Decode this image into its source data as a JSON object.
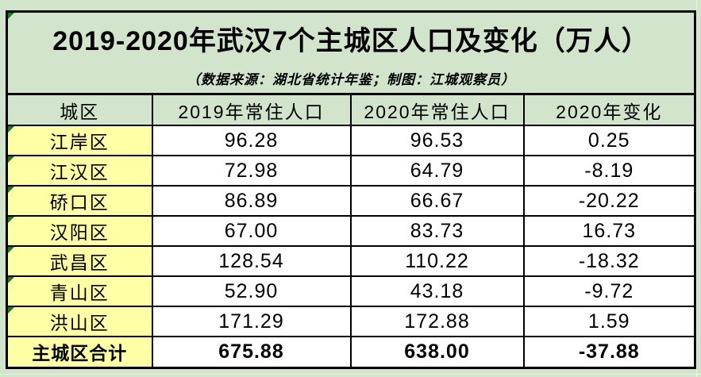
{
  "page": {
    "title": "2019-2020年武汉7个主城区人口及变化（万人）",
    "subtitle": "（数据来源：湖北省统计年鉴；制图：江城观察员）"
  },
  "colors": {
    "background_green": "#d2e5cc",
    "label_yellow": "#ffffa6",
    "data_white": "#ffffff",
    "border_black": "#000000",
    "note_triangle_green": "#1f7820"
  },
  "table": {
    "columns": [
      "城区",
      "2019年常住人口",
      "2020年常住人口",
      "2020年变化"
    ],
    "rows": [
      {
        "district": "江岸区",
        "pop2019": "96.28",
        "pop2020": "96.53",
        "change": "0.25"
      },
      {
        "district": "江汉区",
        "pop2019": "72.98",
        "pop2020": "64.79",
        "change": "-8.19"
      },
      {
        "district": "硚口区",
        "pop2019": "86.89",
        "pop2020": "66.67",
        "change": "-20.22"
      },
      {
        "district": "汉阳区",
        "pop2019": "67.00",
        "pop2020": "83.73",
        "change": "16.73"
      },
      {
        "district": "武昌区",
        "pop2019": "128.54",
        "pop2020": "110.22",
        "change": "-18.32"
      },
      {
        "district": "青山区",
        "pop2019": "52.90",
        "pop2020": "43.18",
        "change": "-9.72"
      },
      {
        "district": "洪山区",
        "pop2019": "171.29",
        "pop2020": "172.88",
        "change": "1.59"
      }
    ],
    "total_row": {
      "district": "主城区合计",
      "pop2019": "675.88",
      "pop2020": "638.00",
      "change": "-37.88"
    }
  },
  "chart_data": {
    "type": "table",
    "title": "2019-2020年武汉7个主城区人口及变化（万人）",
    "subtitle": "（数据来源：湖北省统计年鉴；制图：江城观察员）",
    "unit": "万人",
    "columns": [
      "城区",
      "2019年常住人口",
      "2020年常住人口",
      "2020年变化"
    ],
    "categories": [
      "江岸区",
      "江汉区",
      "硚口区",
      "汉阳区",
      "武昌区",
      "青山区",
      "洪山区"
    ],
    "series": [
      {
        "name": "2019年常住人口",
        "values": [
          96.28,
          72.98,
          86.89,
          67.0,
          128.54,
          52.9,
          171.29
        ]
      },
      {
        "name": "2020年常住人口",
        "values": [
          96.53,
          64.79,
          66.67,
          83.73,
          110.22,
          43.18,
          172.88
        ]
      },
      {
        "name": "2020年变化",
        "values": [
          0.25,
          -8.19,
          -20.22,
          16.73,
          -18.32,
          -9.72,
          1.59
        ]
      }
    ],
    "totals": {
      "name": "主城区合计",
      "values": [
        675.88,
        638.0,
        -37.88
      ]
    }
  }
}
